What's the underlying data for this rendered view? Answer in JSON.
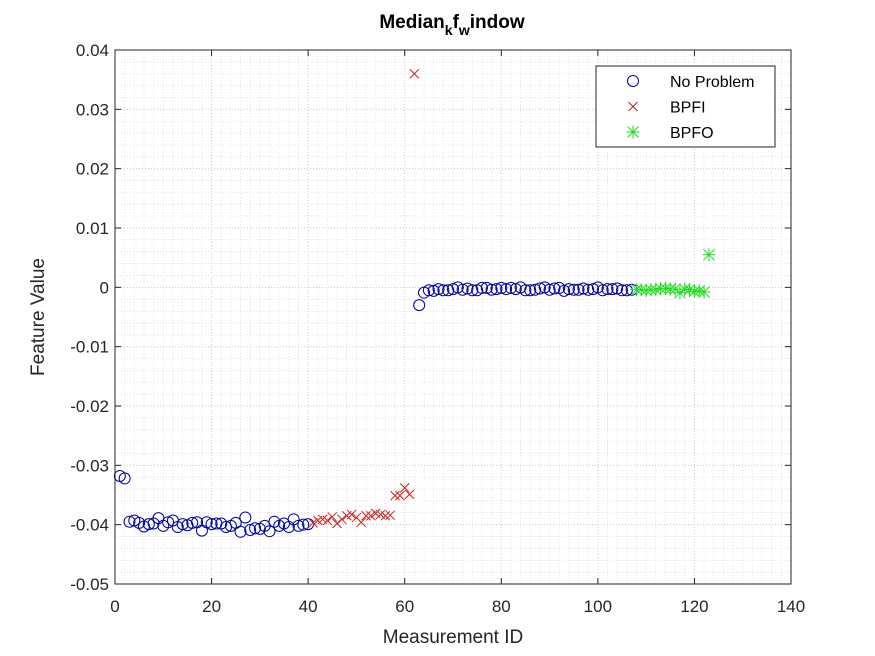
{
  "chart_data": {
    "type": "scatter",
    "title_parts": [
      "Median",
      "k",
      "f",
      "w",
      "indow"
    ],
    "xlabel": "Measurement ID",
    "ylabel": "Feature Value",
    "xlim": [
      0,
      140
    ],
    "ylim": [
      -0.05,
      0.04
    ],
    "x_ticks": [
      "0",
      "20",
      "40",
      "60",
      "80",
      "100",
      "120",
      "140"
    ],
    "y_ticks": [
      "0.04",
      "0.03",
      "0.02",
      "0.01",
      "0",
      "-0.01",
      "-0.02",
      "-0.03",
      "-0.04",
      "-0.05"
    ],
    "grid": "on (major + minor, dotted)",
    "legend_position": "top-right",
    "series": [
      {
        "name": "No Problem",
        "marker": "circle",
        "color": "#0000A0",
        "points": [
          [
            1,
            -0.0318
          ],
          [
            2,
            -0.0322
          ],
          [
            3,
            -0.0395
          ],
          [
            4,
            -0.0393
          ],
          [
            5,
            -0.0397
          ],
          [
            6,
            -0.0403
          ],
          [
            7,
            -0.0399
          ],
          [
            8,
            -0.0398
          ],
          [
            9,
            -0.0389
          ],
          [
            10,
            -0.0402
          ],
          [
            11,
            -0.0396
          ],
          [
            12,
            -0.0393
          ],
          [
            13,
            -0.0404
          ],
          [
            14,
            -0.0399
          ],
          [
            15,
            -0.0401
          ],
          [
            16,
            -0.0397
          ],
          [
            17,
            -0.0396
          ],
          [
            18,
            -0.041
          ],
          [
            19,
            -0.0396
          ],
          [
            20,
            -0.0399
          ],
          [
            21,
            -0.0398
          ],
          [
            22,
            -0.0398
          ],
          [
            23,
            -0.0404
          ],
          [
            24,
            -0.0402
          ],
          [
            25,
            -0.0397
          ],
          [
            26,
            -0.0412
          ],
          [
            27,
            -0.0388
          ],
          [
            28,
            -0.0409
          ],
          [
            29,
            -0.0406
          ],
          [
            30,
            -0.0407
          ],
          [
            31,
            -0.0402
          ],
          [
            32,
            -0.0411
          ],
          [
            33,
            -0.0395
          ],
          [
            34,
            -0.0402
          ],
          [
            35,
            -0.0398
          ],
          [
            36,
            -0.0404
          ],
          [
            37,
            -0.0391
          ],
          [
            38,
            -0.0402
          ],
          [
            39,
            -0.04
          ],
          [
            40,
            -0.0399
          ],
          [
            63,
            -0.003
          ],
          [
            64,
            -0.0009
          ],
          [
            65,
            -0.0005
          ],
          [
            66,
            -0.0006
          ],
          [
            67,
            -0.0003
          ],
          [
            68,
            -0.0005
          ],
          [
            69,
            -0.0005
          ],
          [
            70,
            -0.0003
          ],
          [
            71,
            0.0
          ],
          [
            72,
            -0.0004
          ],
          [
            73,
            -0.0002
          ],
          [
            74,
            -0.0005
          ],
          [
            75,
            -0.0005
          ],
          [
            76,
            -0.0001
          ],
          [
            77,
            -0.0001
          ],
          [
            78,
            -0.0004
          ],
          [
            79,
            -0.0003
          ],
          [
            80,
            -0.0001
          ],
          [
            81,
            -0.0003
          ],
          [
            82,
            -0.0001
          ],
          [
            83,
            -0.0003
          ],
          [
            84,
            0.0
          ],
          [
            85,
            -0.0005
          ],
          [
            86,
            -0.0005
          ],
          [
            87,
            -0.0004
          ],
          [
            88,
            -0.0002
          ],
          [
            89,
            0.0
          ],
          [
            90,
            -0.0004
          ],
          [
            91,
            -0.0002
          ],
          [
            92,
            -0.0001
          ],
          [
            93,
            -0.0006
          ],
          [
            94,
            -0.0003
          ],
          [
            95,
            -0.0004
          ],
          [
            96,
            -0.0004
          ],
          [
            97,
            -0.0002
          ],
          [
            98,
            -0.0004
          ],
          [
            99,
            -0.0003
          ],
          [
            100,
            0.0
          ],
          [
            101,
            -0.0005
          ],
          [
            102,
            -0.0003
          ],
          [
            103,
            -0.0003
          ],
          [
            104,
            -0.0002
          ],
          [
            105,
            -0.0005
          ],
          [
            106,
            -0.0005
          ],
          [
            107,
            -0.0004
          ]
        ]
      },
      {
        "name": "BPFI",
        "marker": "x",
        "color": "#CC2222",
        "points": [
          [
            41,
            -0.0397
          ],
          [
            42,
            -0.0393
          ],
          [
            43,
            -0.0391
          ],
          [
            44,
            -0.0393
          ],
          [
            45,
            -0.0387
          ],
          [
            46,
            -0.0398
          ],
          [
            47,
            -0.0391
          ],
          [
            48,
            -0.0385
          ],
          [
            49,
            -0.0383
          ],
          [
            50,
            -0.0388
          ],
          [
            51,
            -0.0396
          ],
          [
            52,
            -0.0385
          ],
          [
            53,
            -0.0385
          ],
          [
            54,
            -0.0381
          ],
          [
            55,
            -0.0383
          ],
          [
            56,
            -0.0385
          ],
          [
            57,
            -0.0384
          ],
          [
            58,
            -0.0351
          ],
          [
            59,
            -0.0351
          ],
          [
            60,
            -0.0338
          ],
          [
            61,
            -0.0349
          ],
          [
            62,
            0.036
          ]
        ]
      },
      {
        "name": "BPFO",
        "marker": "asterisk",
        "color": "#22DD22",
        "points": [
          [
            108,
            -0.0004
          ],
          [
            109,
            -0.0004
          ],
          [
            110,
            -0.0005
          ],
          [
            111,
            -0.0004
          ],
          [
            112,
            -0.0004
          ],
          [
            113,
            -0.0002
          ],
          [
            114,
            -0.0002
          ],
          [
            115,
            -0.0003
          ],
          [
            116,
            -0.0003
          ],
          [
            117,
            -0.0009
          ],
          [
            118,
            -0.0003
          ],
          [
            119,
            -0.0004
          ],
          [
            120,
            -0.0007
          ],
          [
            121,
            -0.0006
          ],
          [
            122,
            -0.0008
          ],
          [
            123,
            0.0055
          ]
        ]
      }
    ]
  }
}
